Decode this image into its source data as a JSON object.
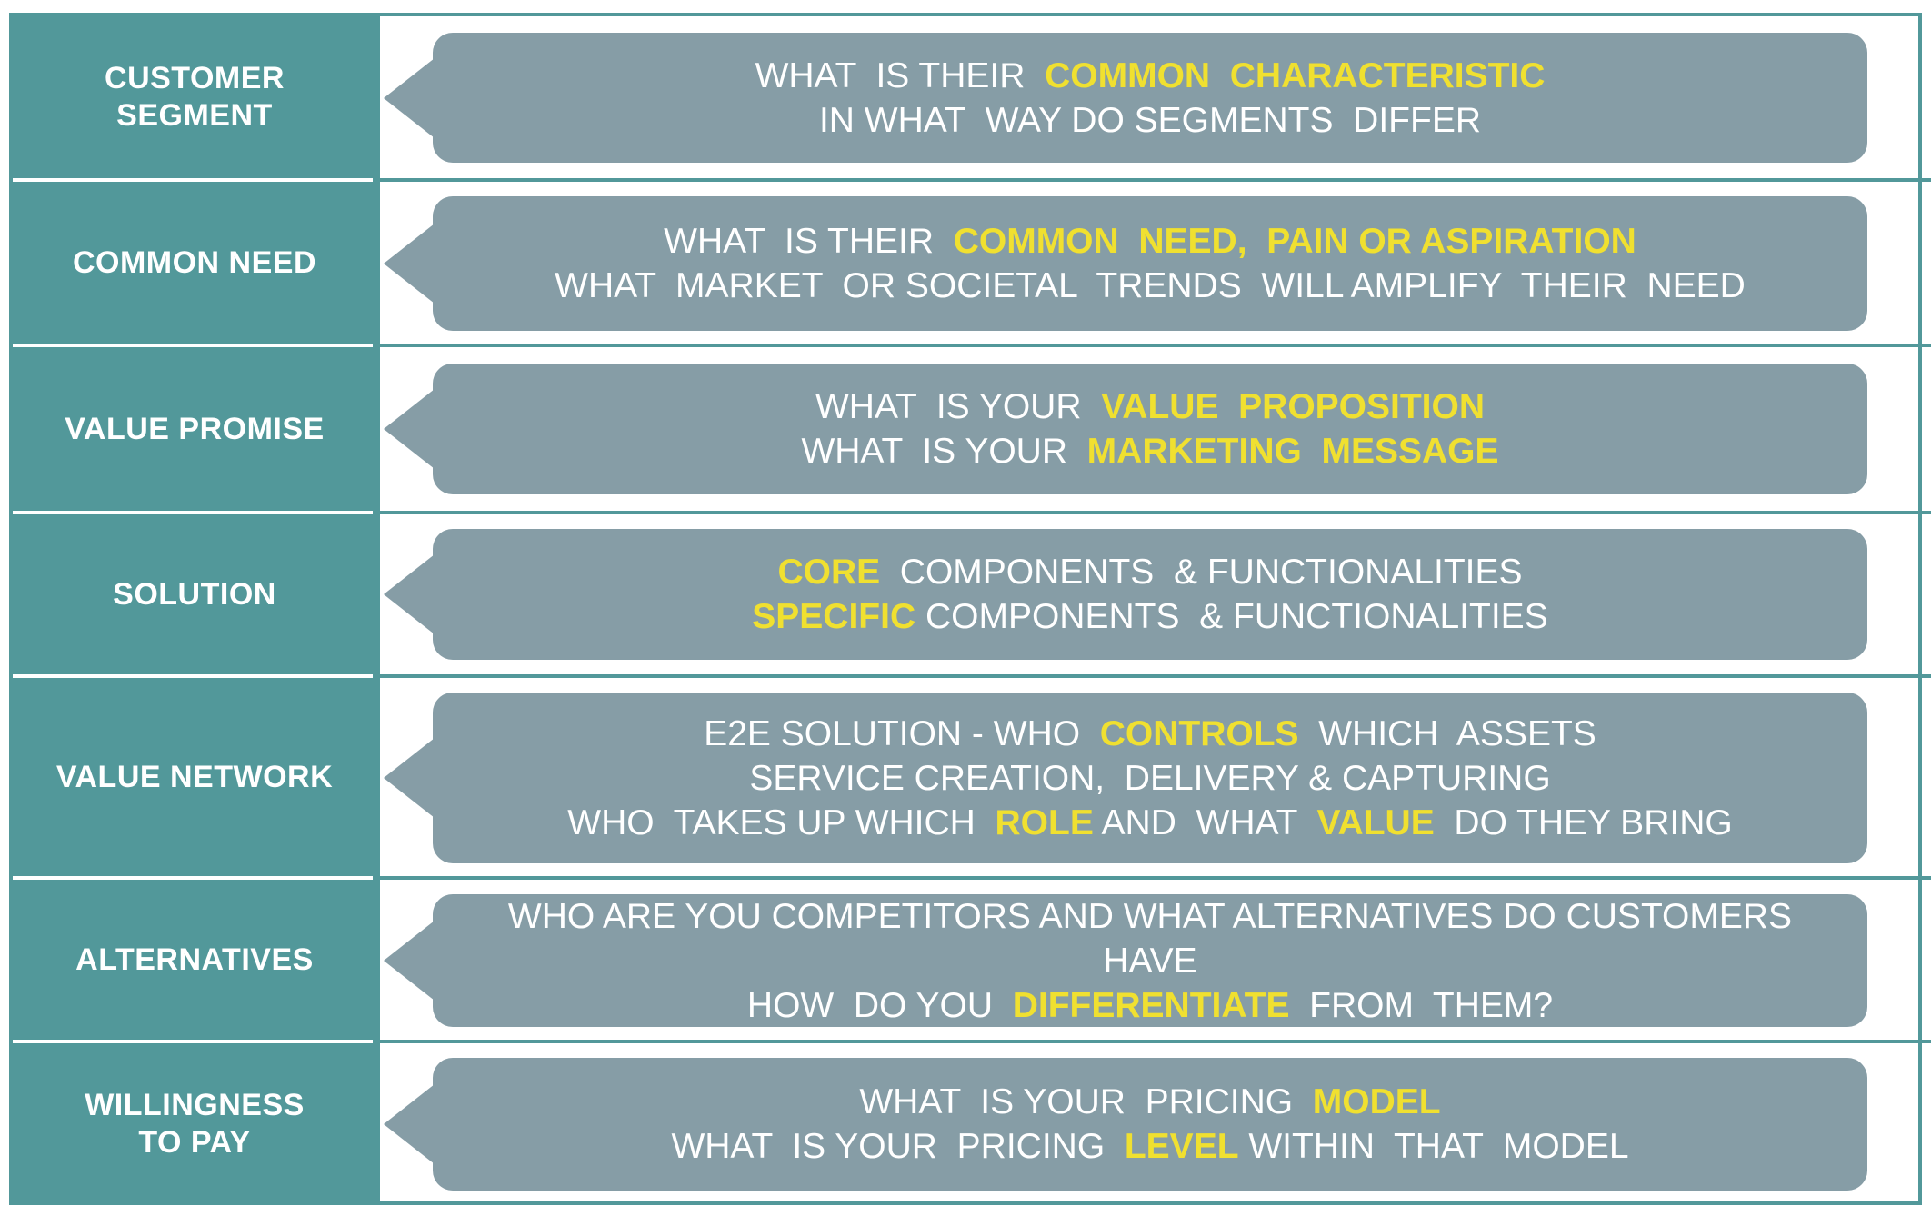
{
  "rows": [
    {
      "label": "CUSTOMER\nSEGMENT",
      "lines": [
        [
          {
            "t": "WHAT  IS THEIR  ",
            "h": false
          },
          {
            "t": "COMMON  CHARACTERISTIC",
            "h": true
          }
        ],
        [
          {
            "t": "IN WHAT  WAY DO SEGMENTS  DIFFER",
            "h": false
          }
        ]
      ]
    },
    {
      "label": "COMMON NEED",
      "lines": [
        [
          {
            "t": "WHAT  IS THEIR  ",
            "h": false
          },
          {
            "t": "COMMON  NEED,  PAIN OR ASPIRATION",
            "h": true
          }
        ],
        [
          {
            "t": "WHAT  MARKET  OR SOCIETAL  TRENDS  WILL AMPLIFY  THEIR  NEED",
            "h": false
          }
        ]
      ]
    },
    {
      "label": "VALUE PROMISE",
      "lines": [
        [
          {
            "t": "WHAT  IS YOUR  ",
            "h": false
          },
          {
            "t": "VALUE  PROPOSITION",
            "h": true
          }
        ],
        [
          {
            "t": "WHAT  IS YOUR  ",
            "h": false
          },
          {
            "t": "MARKETING  MESSAGE",
            "h": true
          }
        ]
      ]
    },
    {
      "label": "SOLUTION",
      "lines": [
        [
          {
            "t": "CORE",
            "h": true
          },
          {
            "t": "  COMPONENTS  & FUNCTIONALITIES",
            "h": false
          }
        ],
        [
          {
            "t": "SPECIFIC",
            "h": true
          },
          {
            "t": " COMPONENTS  & FUNCTIONALITIES",
            "h": false
          }
        ]
      ]
    },
    {
      "label": "VALUE NETWORK",
      "lines": [
        [
          {
            "t": "E2E SOLUTION - WHO  ",
            "h": false
          },
          {
            "t": "CONTROLS",
            "h": true
          },
          {
            "t": "  WHICH  ASSETS",
            "h": false
          }
        ],
        [
          {
            "t": "SERVICE CREATION,  DELIVERY & CAPTURING",
            "h": false
          }
        ],
        [
          {
            "t": "WHO  TAKES UP WHICH  ",
            "h": false
          },
          {
            "t": "ROLE",
            "h": true
          },
          {
            "t": " AND  WHAT  ",
            "h": false
          },
          {
            "t": "VALUE",
            "h": true
          },
          {
            "t": "  DO THEY BRING",
            "h": false
          }
        ]
      ]
    },
    {
      "label": "ALTERNATIVES",
      "lines": [
        [
          {
            "t": "WHO  ARE YOU COMPETITORS AND WHAT ALTERNATIVES  DO CUSTOMERS",
            "h": false
          }
        ],
        [
          {
            "t": "HAVE",
            "h": false
          }
        ],
        [
          {
            "t": "HOW  DO YOU  ",
            "h": false
          },
          {
            "t": "DIFFERENTIATE",
            "h": true
          },
          {
            "t": "  FROM  THEM?",
            "h": false
          }
        ]
      ]
    },
    {
      "label": "WILLINGNESS\nTO PAY",
      "lines": [
        [
          {
            "t": "WHAT  IS YOUR  PRICING  ",
            "h": false
          },
          {
            "t": "MODEL",
            "h": true
          }
        ],
        [
          {
            "t": "WHAT  IS YOUR  PRICING  ",
            "h": false
          },
          {
            "t": "LEVEL",
            "h": true
          },
          {
            "t": " WITHIN  THAT  MODEL",
            "h": false
          }
        ]
      ]
    }
  ],
  "colors": {
    "teal": "#52989a",
    "bubble": "#869da6",
    "highlight": "#f0e030",
    "text": "#ffffff"
  }
}
